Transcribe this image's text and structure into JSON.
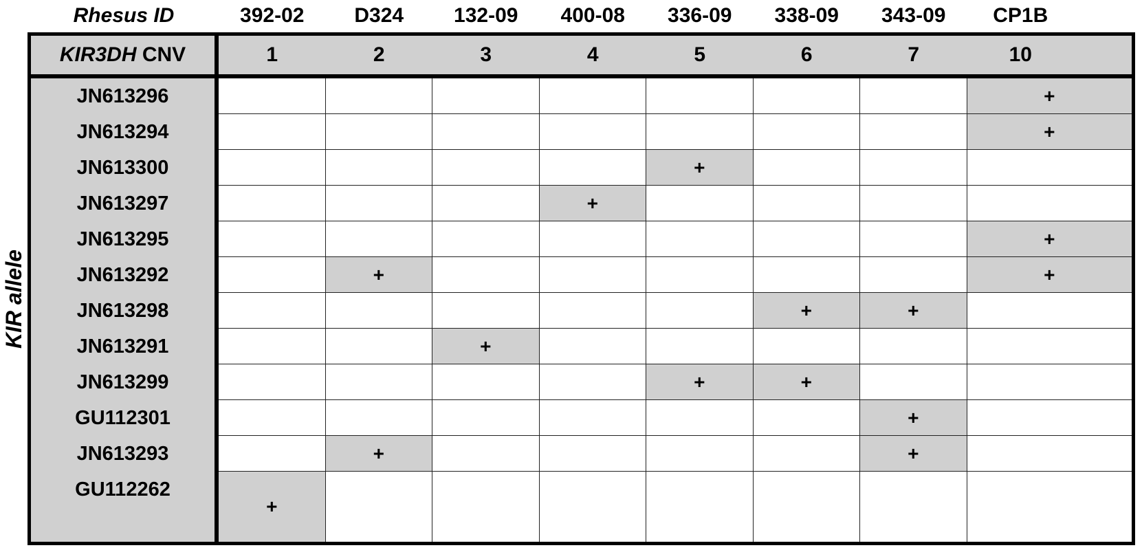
{
  "header": {
    "id_label": "Rhesus ID",
    "cnv_label_italic": "KIR3DH",
    "cnv_label_suffix": " CNV",
    "side_label": "KIR allele"
  },
  "animals": [
    {
      "id": "392-02",
      "cnv": "1"
    },
    {
      "id": "D324",
      "cnv": "2"
    },
    {
      "id": "132-09",
      "cnv": "3"
    },
    {
      "id": "400-08",
      "cnv": "4"
    },
    {
      "id": "336-09",
      "cnv": "5"
    },
    {
      "id": "338-09",
      "cnv": "6"
    },
    {
      "id": "343-09",
      "cnv": "7"
    },
    {
      "id": "CP1B",
      "cnv": "10"
    }
  ],
  "mark_symbol": "+",
  "fill_color": "#d0d0d0",
  "rows": [
    {
      "allele": "JN613296",
      "present": [
        false,
        false,
        false,
        false,
        false,
        false,
        false,
        true
      ]
    },
    {
      "allele": "JN613294",
      "present": [
        false,
        false,
        false,
        false,
        false,
        false,
        false,
        true
      ]
    },
    {
      "allele": "JN613300",
      "present": [
        false,
        false,
        false,
        false,
        true,
        false,
        false,
        false
      ]
    },
    {
      "allele": "JN613297",
      "present": [
        false,
        false,
        false,
        true,
        false,
        false,
        false,
        false
      ]
    },
    {
      "allele": "JN613295",
      "present": [
        false,
        false,
        false,
        false,
        false,
        false,
        false,
        true
      ]
    },
    {
      "allele": "JN613292",
      "present": [
        false,
        true,
        false,
        false,
        false,
        false,
        false,
        true
      ]
    },
    {
      "allele": "JN613298",
      "present": [
        false,
        false,
        false,
        false,
        false,
        true,
        true,
        false
      ]
    },
    {
      "allele": "JN613291",
      "present": [
        false,
        false,
        true,
        false,
        false,
        false,
        false,
        false
      ]
    },
    {
      "allele": "JN613299",
      "present": [
        false,
        false,
        false,
        false,
        true,
        true,
        false,
        false
      ]
    },
    {
      "allele": "GU112301",
      "present": [
        false,
        false,
        false,
        false,
        false,
        false,
        true,
        false
      ]
    },
    {
      "allele": "JN613293",
      "present": [
        false,
        true,
        false,
        false,
        false,
        false,
        true,
        false
      ]
    },
    {
      "allele": "GU112262",
      "present": [
        true,
        false,
        false,
        false,
        false,
        false,
        false,
        false
      ]
    }
  ]
}
